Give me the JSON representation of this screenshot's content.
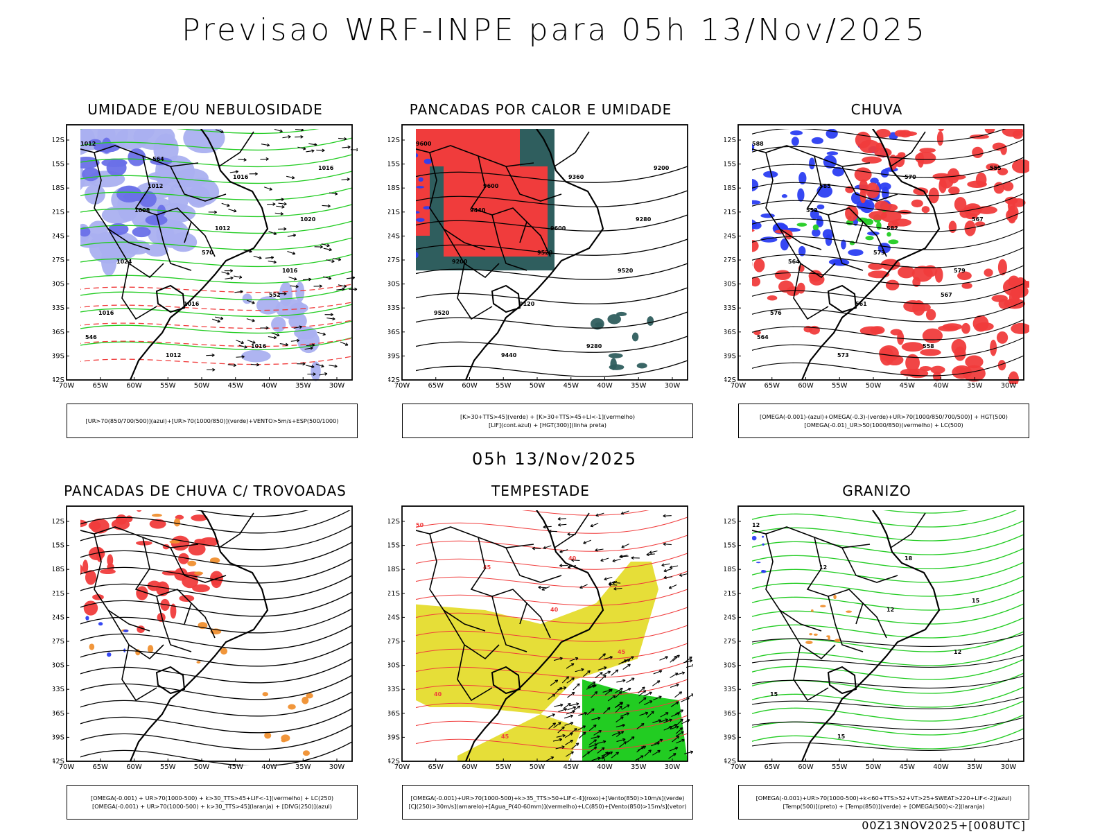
{
  "header": {
    "title": "Previsao WRF-INPE  para 05h 13/Nov/2025"
  },
  "subtitle": "05h 13/Nov/2025",
  "footer": "00Z13NOV2025+[008UTC]",
  "axes": {
    "lat_labels": [
      "12S",
      "15S",
      "18S",
      "21S",
      "24S",
      "27S",
      "30S",
      "33S",
      "36S",
      "39S",
      "42S"
    ],
    "lon_labels": [
      "70W",
      "65W",
      "60W",
      "55W",
      "50W",
      "45W",
      "40W",
      "35W",
      "30W"
    ]
  },
  "colors": {
    "red": "#f03c3c",
    "blue": "#2b3ef2",
    "green": "#22cc22",
    "orange": "#f09030",
    "yellow": "#e6de38",
    "teal": "#2f5e5e",
    "lavender": "#aab0f0"
  },
  "panels": [
    {
      "id": "umidade",
      "title": "UMIDADE E/OU NEBULOSIDADE",
      "legend": [
        "[UR>70(850/700/500)](azul)+[UR>70(1000/850)](verde)+VENTO>5m/s+ESP(500/1000)"
      ],
      "contour_labels": [
        "1012",
        "1012",
        "1012",
        "1016",
        "1016",
        "1012",
        "1016",
        "1020",
        "1024",
        "1016",
        "1016",
        "1016",
        "1008",
        "570",
        "552",
        "546",
        "564"
      ]
    },
    {
      "id": "pancadas",
      "title": "PANCADAS POR CALOR E UMIDADE",
      "legend": [
        "[K>30+TTS>45](verde) + [K>30+TTS>45+LI<-1](vermelho)",
        "[LIF](cont.azul) + [HGT(300)](linha preta)"
      ],
      "contour_labels": [
        "9600",
        "9600",
        "9600",
        "9520",
        "9520",
        "9440",
        "9360",
        "9280",
        "9200",
        "9120",
        "9280",
        "9200",
        "9440",
        "9520"
      ]
    },
    {
      "id": "chuva",
      "title": "CHUVA",
      "legend": [
        "[OMEGA(-0.001)-(azul)+OMEGA(-0.3)-(verde)+UR>70(1000/850/700/500)] + HGT(500)",
        "[OMEGA(-0.01)_UR>50(1000/850)(vermelho) + LC(500)"
      ],
      "contour_labels": [
        "588",
        "585",
        "582",
        "579",
        "576",
        "573",
        "570",
        "567",
        "564",
        "561",
        "558",
        "555",
        "552",
        "573",
        "567",
        "564"
      ]
    },
    {
      "id": "trovoadas",
      "title": "PANCADAS DE CHUVA C/ TROVOADAS",
      "legend": [
        "[OMEGA(-0.001) + UR>70(1000-500) + k>30_TTS>45+LIF<-1](vermelho) + LC(250)",
        "[OMEGA(-0.001) + UR>70(1000-500) + k>30_TTS>45](laranja) + [DIVG(250)](azul)"
      ],
      "contour_labels": []
    },
    {
      "id": "tempestade",
      "title": "TEMPESTADE",
      "legend": [
        "[OMEGA(-0.001)+UR>70(1000-500)+k>35_TTS>50+LIF<-4](roxo)+[Vento(850)>10m/s](verde)",
        "[CJ(250)>30m/s](amarelo)+[Agua_P(40-60mm)](vermelho)+LC(850)+[Vento(850)>15m/s](vetor)"
      ],
      "contour_labels": [
        "50",
        "45",
        "40",
        "45",
        "40",
        "45",
        "40"
      ]
    },
    {
      "id": "granizo",
      "title": "GRANIZO",
      "legend": [
        "[OMEGA(-0.001)+UR>70(1000-500)+k<60+TTS>52+VT>25+SWEAT>220+LIF<-2](azul)",
        "[Temp(500)](preto) + [Temp(850)](verde) + [OMEGA(500)<-2](laranja)"
      ],
      "contour_labels": [
        "12",
        "12",
        "12",
        "12",
        "15",
        "15",
        "18",
        "15"
      ]
    }
  ]
}
